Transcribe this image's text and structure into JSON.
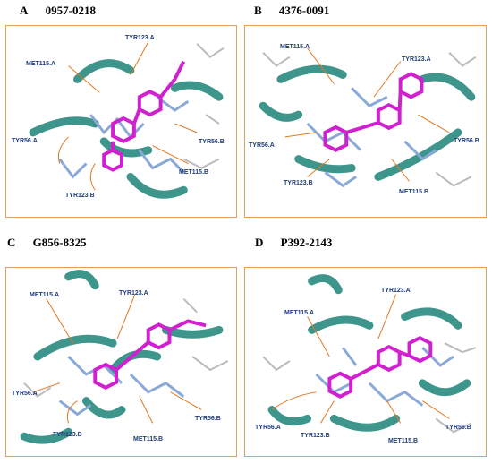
{
  "colors": {
    "frame_border": "#e0a060",
    "ribbon": "#2a8a80",
    "ligand": "#d020d0",
    "residue_stick": "#8aa8d8",
    "arrow": "#e07820",
    "label": "#1f3b7a"
  },
  "panels": [
    {
      "letter": "A",
      "compound": "0957-0218",
      "residues": [
        "MET115.A",
        "TYR123.A",
        "TYR56.A",
        "TYR123.B",
        "MET115.B",
        "TYR56.B"
      ]
    },
    {
      "letter": "B",
      "compound": "4376-0091",
      "residues": [
        "MET115.A",
        "TYR123.A",
        "TYR56.A",
        "TYR123.B",
        "MET115.B",
        "TYR56.B"
      ]
    },
    {
      "letter": "C",
      "compound": "G856-8325",
      "residues": [
        "MET115.A",
        "TYR123.A",
        "TYR56.A",
        "TYR123.B",
        "MET115.B",
        "TYR56.B"
      ]
    },
    {
      "letter": "D",
      "compound": "P392-2143",
      "residues": [
        "MET115.A",
        "TYR123.A",
        "TYR56.A",
        "TYR123.B",
        "MET115.B",
        "TYR56.B"
      ]
    }
  ]
}
